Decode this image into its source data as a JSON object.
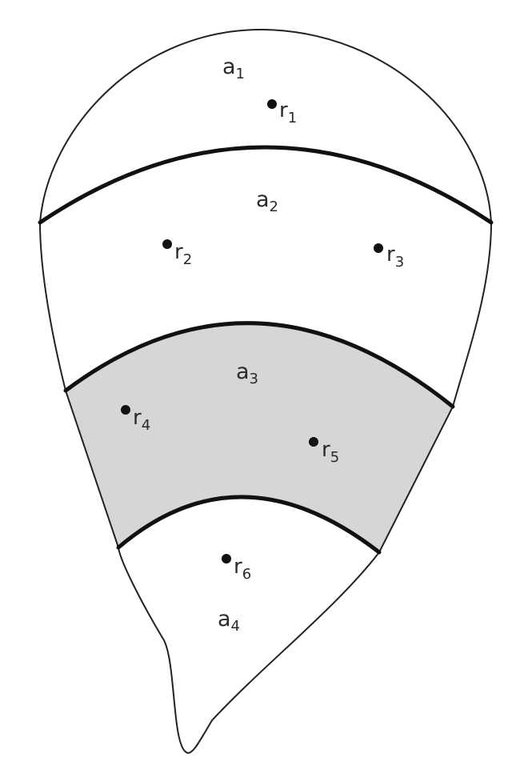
{
  "regions": [
    {
      "id": "a1",
      "base": "a",
      "sub": "1",
      "shaded": false
    },
    {
      "id": "a2",
      "base": "a",
      "sub": "2",
      "shaded": false
    },
    {
      "id": "a3",
      "base": "a",
      "sub": "3",
      "shaded": true
    },
    {
      "id": "a4",
      "base": "a",
      "sub": "4",
      "shaded": false
    }
  ],
  "points": [
    {
      "id": "r1",
      "base": "r",
      "sub": "1"
    },
    {
      "id": "r2",
      "base": "r",
      "sub": "2"
    },
    {
      "id": "r3",
      "base": "r",
      "sub": "3"
    },
    {
      "id": "r4",
      "base": "r",
      "sub": "4"
    },
    {
      "id": "r5",
      "base": "r",
      "sub": "5"
    },
    {
      "id": "r6",
      "base": "r",
      "sub": "6"
    }
  ],
  "colors": {
    "shaded_region": "#d6d6d6",
    "lines": "#111111",
    "background": "#ffffff"
  }
}
